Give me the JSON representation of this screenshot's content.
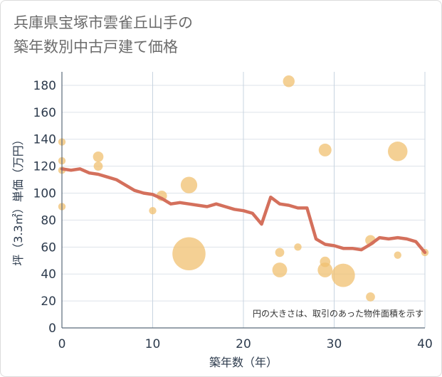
{
  "title_lines": [
    "兵庫県宝塚市雲雀丘山手の",
    "築年数別中古戸建て価格"
  ],
  "chart_data": {
    "type": "scatter",
    "title": "兵庫県宝塚市雲雀丘山手の築年数別中古戸建て価格",
    "xlabel": "築年数（年）",
    "ylabel": "坪（3.3㎡）単価（万円）",
    "xlim": [
      0,
      40
    ],
    "ylim": [
      0,
      190
    ],
    "xticks": [
      0,
      10,
      20,
      30,
      40
    ],
    "yticks": [
      0,
      20,
      40,
      60,
      80,
      100,
      120,
      140,
      160,
      180
    ],
    "annotation": "円の大きさは、取引のあった物件面積を示す",
    "colors": {
      "bubble": "#f0c070",
      "line": "#d4705c",
      "grid": "#dde3ea",
      "vgrid": "#c8d4e0"
    },
    "scatter": [
      {
        "x": 0,
        "y": 138,
        "size": 1
      },
      {
        "x": 0,
        "y": 124,
        "size": 1
      },
      {
        "x": 0,
        "y": 117,
        "size": 1
      },
      {
        "x": 0,
        "y": 90,
        "size": 1
      },
      {
        "x": 4,
        "y": 127,
        "size": 2
      },
      {
        "x": 4,
        "y": 120,
        "size": 1.5
      },
      {
        "x": 10,
        "y": 87,
        "size": 1
      },
      {
        "x": 11,
        "y": 98,
        "size": 2
      },
      {
        "x": 14,
        "y": 106,
        "size": 5
      },
      {
        "x": 14,
        "y": 55,
        "size": 20
      },
      {
        "x": 24,
        "y": 56,
        "size": 1.5
      },
      {
        "x": 24,
        "y": 43,
        "size": 4
      },
      {
        "x": 25,
        "y": 183,
        "size": 2.5
      },
      {
        "x": 26,
        "y": 60,
        "size": 1
      },
      {
        "x": 29,
        "y": 132,
        "size": 3
      },
      {
        "x": 29,
        "y": 49,
        "size": 2
      },
      {
        "x": 29,
        "y": 43,
        "size": 4
      },
      {
        "x": 31,
        "y": 39,
        "size": 10
      },
      {
        "x": 34,
        "y": 65,
        "size": 2
      },
      {
        "x": 34,
        "y": 23,
        "size": 1.5
      },
      {
        "x": 37,
        "y": 131,
        "size": 7
      },
      {
        "x": 37,
        "y": 54,
        "size": 1
      },
      {
        "x": 40,
        "y": 56,
        "size": 1
      }
    ],
    "trend": {
      "x": [
        0,
        1,
        2,
        3,
        4,
        5,
        6,
        7,
        8,
        9,
        10,
        11,
        12,
        13,
        14,
        15,
        16,
        17,
        18,
        19,
        20,
        21,
        22,
        23,
        24,
        25,
        26,
        27,
        28,
        29,
        30,
        31,
        32,
        33,
        34,
        35,
        36,
        37,
        38,
        39,
        40
      ],
      "y": [
        118,
        117,
        118,
        115,
        114,
        112,
        110,
        106,
        102,
        100,
        99,
        96,
        92,
        93,
        92,
        91,
        90,
        92,
        90,
        88,
        87,
        85,
        77,
        97,
        92,
        91,
        89,
        89,
        66,
        62,
        61,
        59,
        59,
        58,
        62,
        67,
        66,
        67,
        66,
        64,
        56
      ]
    }
  }
}
